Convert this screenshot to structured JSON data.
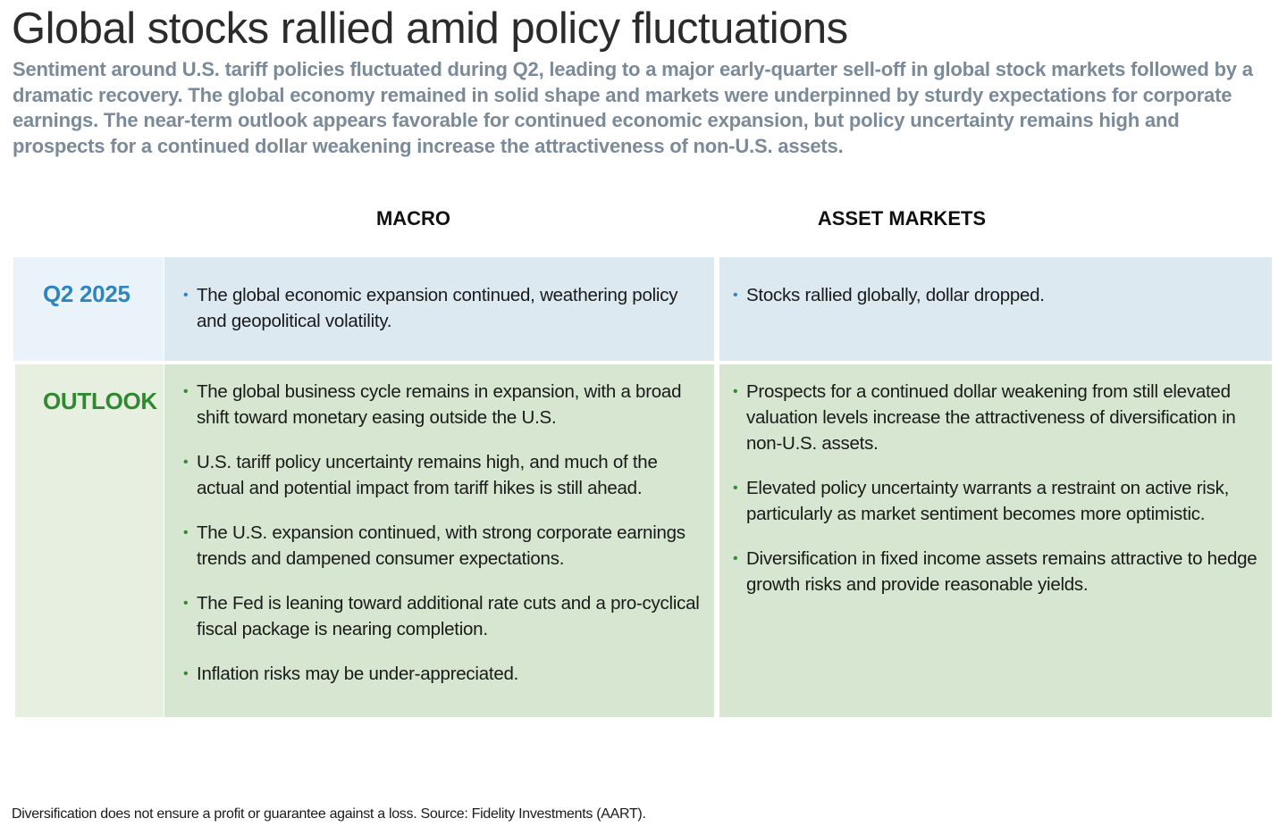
{
  "title": "Global stocks rallied amid policy fluctuations",
  "subtitle": "Sentiment around U.S. tariff policies fluctuated during Q2, leading to a major early-quarter sell-off in global stock markets followed by a dramatic recovery. The global economy remained in solid shape and markets were underpinned by sturdy expectations for corporate earnings. The near-term outlook appears favorable for continued economic expansion, but policy uncertainty remains high and prospects for a continued dollar weakening increase the attractiveness of non-U.S. assets.",
  "columns": {
    "macro": "MACRO",
    "asset_markets": "ASSET MARKETS"
  },
  "rows": {
    "q2": {
      "label": "Q2 2025",
      "macro": [
        "The global economic expansion continued, weathering policy and geopolitical volatility."
      ],
      "asset_markets": [
        "Stocks rallied globally, dollar dropped."
      ]
    },
    "outlook": {
      "label": "OUTLOOK",
      "macro": [
        "The global business cycle remains in expansion, with a broad shift toward monetary easing outside the U.S.",
        "U.S. tariff policy uncertainty remains high, and much of the actual and potential impact from tariff hikes is still ahead.",
        "The U.S. expansion continued, with strong corporate earnings trends and dampened consumer expectations.",
        "The Fed is leaning toward additional rate cuts and a pro-cyclical fiscal package is nearing completion.",
        "Inflation risks may be under-appreciated."
      ],
      "asset_markets": [
        "Prospects for a continued dollar weakening from still elevated valuation levels increase the attractiveness of diversification in non-U.S. assets.",
        "Elevated policy uncertainty warrants a restraint on active risk, particularly as market sentiment becomes more optimistic.",
        "Diversification in fixed income assets remains attractive to hedge growth risks and provide reasonable yields."
      ]
    }
  },
  "footnote": "Diversification does not ensure a profit or guarantee against a loss. Source: Fidelity Investments (AART).",
  "colors": {
    "q2_accent": "#2e86c1",
    "outlook_accent": "#2f8a2f",
    "q2_fill": "#dce9f1",
    "outlook_fill": "#d7e6d0",
    "subtitle": "#7b8a99"
  }
}
